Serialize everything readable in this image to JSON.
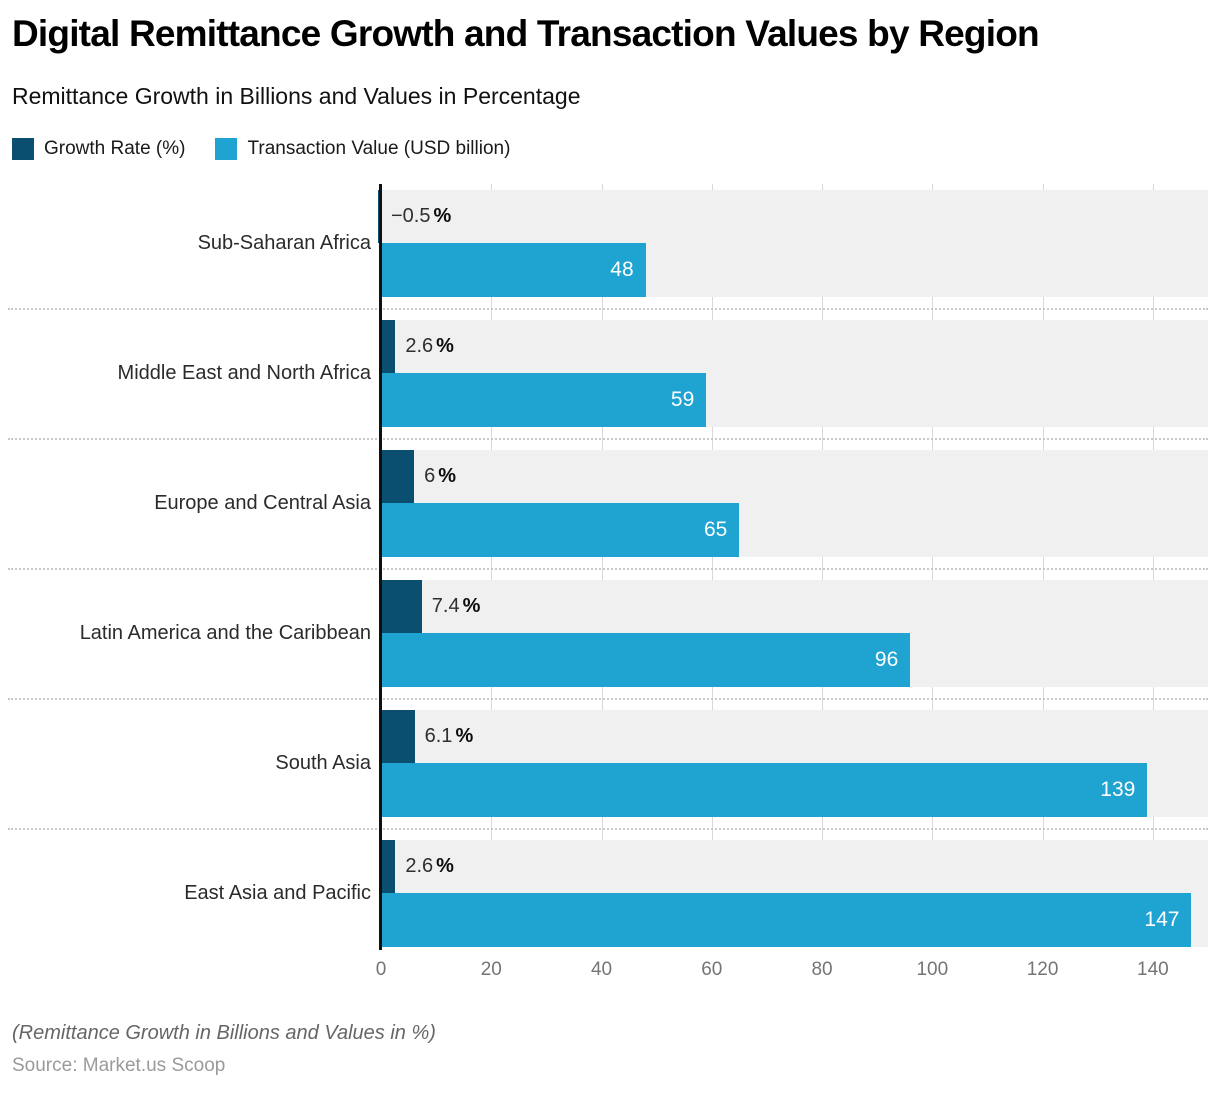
{
  "title": "Digital Remittance Growth and Transaction Values by Region",
  "subtitle": "Remittance Growth in Billions and Values in Percentage",
  "legend": [
    {
      "label": "Growth Rate (%)",
      "color": "#0a4f70"
    },
    {
      "label": "Transaction Value (USD billion)",
      "color": "#1fa3d0"
    }
  ],
  "chart_data": {
    "type": "bar",
    "orientation": "horizontal",
    "title": "Digital Remittance Growth and Transaction Values by Region",
    "categories": [
      "Sub-Saharan Africa",
      "Middle East and North Africa",
      "Europe and Central Asia",
      "Latin America and the Caribbean",
      "South Asia",
      "East Asia and Pacific"
    ],
    "series": [
      {
        "name": "Growth Rate (%)",
        "color": "#0a4f70",
        "values": [
          -0.5,
          2.6,
          6,
          7.4,
          6.1,
          2.6
        ],
        "value_labels": [
          "−0.5",
          "2.6",
          "6",
          "7.4",
          "6.1",
          "2.6"
        ],
        "unit_suffix": "%"
      },
      {
        "name": "Transaction Value (USD billion)",
        "color": "#1fa3d0",
        "values": [
          48,
          59,
          65,
          96,
          139,
          147
        ],
        "value_labels": [
          "48",
          "59",
          "65",
          "96",
          "139",
          "147"
        ]
      }
    ],
    "xlim": [
      0,
      150
    ],
    "x_ticks": [
      "0",
      "20",
      "40",
      "60",
      "80",
      "100",
      "120",
      "140"
    ],
    "grid": true,
    "legend_position": "top",
    "row_background": "#f0f0f0",
    "gridline_color": "#d8d8d8"
  },
  "footnote": "(Remittance Growth in Billions and Values in %)",
  "source": "Source: Market.us Scoop"
}
